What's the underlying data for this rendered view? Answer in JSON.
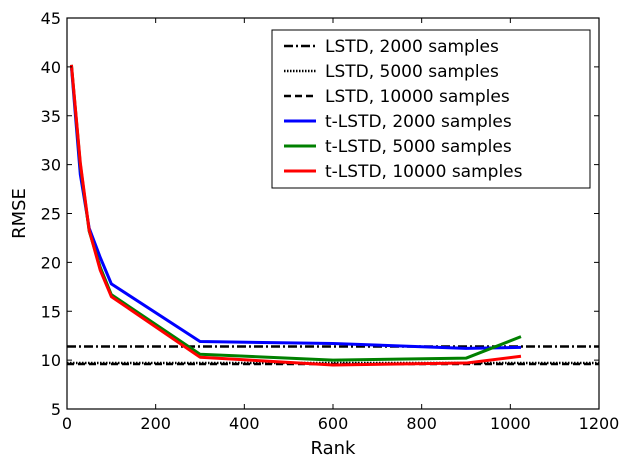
{
  "chart_data": {
    "type": "line",
    "title": "",
    "xlabel": "Rank",
    "ylabel": "RMSE",
    "xlim": [
      0,
      1200
    ],
    "ylim": [
      5,
      45
    ],
    "xticks": [
      "0",
      "200",
      "400",
      "600",
      "800",
      "1000",
      "1200"
    ],
    "yticks": [
      "5",
      "10",
      "15",
      "20",
      "25",
      "30",
      "35",
      "40",
      "45"
    ],
    "grid": false,
    "legend_position": "top-right",
    "series": [
      {
        "name": "LSTD, 2000 samples",
        "kind": "hline",
        "style": "dashdot",
        "color": "#000000",
        "y": 11.4
      },
      {
        "name": "LSTD, 5000 samples",
        "kind": "hline",
        "style": "dotted",
        "color": "#000000",
        "y": 9.7
      },
      {
        "name": "LSTD, 10000 samples",
        "kind": "hline",
        "style": "dashed",
        "color": "#000000",
        "y": 9.6
      },
      {
        "name": "t-LSTD, 2000 samples",
        "kind": "line",
        "color": "#0000ff",
        "x": [
          10,
          30,
          50,
          75,
          100,
          300,
          600,
          900,
          1024
        ],
        "y": [
          40.0,
          29.0,
          23.5,
          20.5,
          17.8,
          11.9,
          11.7,
          11.2,
          11.3
        ]
      },
      {
        "name": "t-LSTD, 5000 samples",
        "kind": "line",
        "color": "#008000",
        "x": [
          10,
          30,
          50,
          75,
          100,
          300,
          600,
          900,
          1024
        ],
        "y": [
          40.2,
          30.0,
          23.2,
          19.5,
          16.7,
          10.6,
          10.0,
          10.2,
          12.4
        ]
      },
      {
        "name": "t-LSTD, 10000 samples",
        "kind": "line",
        "color": "#ff0000",
        "x": [
          10,
          30,
          50,
          75,
          100,
          300,
          600,
          900,
          1024
        ],
        "y": [
          40.2,
          30.2,
          23.3,
          19.2,
          16.5,
          10.3,
          9.5,
          9.7,
          10.4
        ]
      }
    ]
  }
}
